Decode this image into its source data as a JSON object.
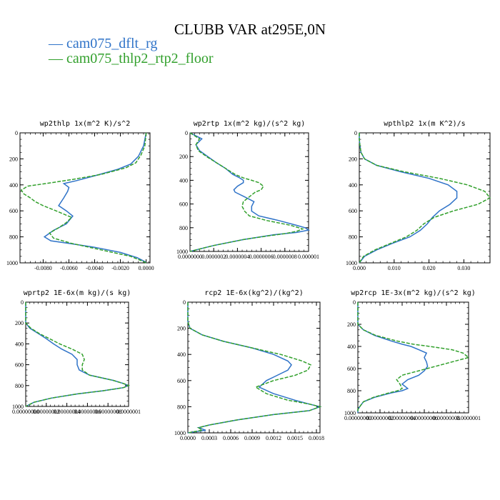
{
  "title": "CLUBB VAR at295E,0N",
  "colors": {
    "series1": "#2f73c8",
    "series2": "#32a02c",
    "axis": "#000000"
  },
  "legend": [
    {
      "label": "cam075_dflt_rg",
      "color": "#2f73c8"
    },
    {
      "label": "cam075_thlp2_rtp2_floor",
      "color": "#32a02c"
    }
  ],
  "chart_data": [
    {
      "type": "line",
      "title": "wp2thlp  1x(m^2 K)/s^2",
      "xlim": [
        -0.0098,
        0.0003
      ],
      "ylim": [
        1000,
        0
      ],
      "y_ticks": [
        0,
        200,
        400,
        600,
        800,
        1000
      ],
      "x_ticks": [
        {
          "v": -0.008,
          "label": "-0.0080"
        },
        {
          "v": -0.006,
          "label": "-0.0060"
        },
        {
          "v": -0.004,
          "label": "-0.0040"
        },
        {
          "v": -0.002,
          "label": "-0.0020"
        },
        {
          "v": 0.0,
          "label": "0.0000"
        }
      ],
      "series": [
        {
          "name": "cam075_dflt_rg",
          "y": [
            0,
            100,
            180,
            240,
            280,
            330,
            370,
            390,
            420,
            450,
            500,
            560,
            600,
            640,
            700,
            750,
            800,
            830,
            850,
            880,
            920,
            960,
            990,
            1000
          ],
          "values": [
            0.0,
            -0.0002,
            -0.0006,
            -0.0012,
            -0.0022,
            -0.004,
            -0.0055,
            -0.0064,
            -0.006,
            -0.0061,
            -0.0064,
            -0.0068,
            -0.0062,
            -0.0057,
            -0.0062,
            -0.0072,
            -0.0079,
            -0.0074,
            -0.006,
            -0.004,
            -0.002,
            -0.0007,
            -0.0001,
            0.0
          ]
        },
        {
          "name": "cam075_thlp2_rtp2_floor",
          "y": [
            0,
            100,
            170,
            230,
            270,
            320,
            360,
            390,
            410,
            440,
            470,
            500,
            530,
            560,
            600,
            650,
            690,
            730,
            770,
            810,
            850,
            900,
            950,
            990,
            1000
          ],
          "values": [
            0.0,
            -0.0001,
            -0.0004,
            -0.0008,
            -0.0016,
            -0.0035,
            -0.0058,
            -0.0078,
            -0.0092,
            -0.0097,
            -0.0095,
            -0.009,
            -0.0086,
            -0.008,
            -0.007,
            -0.0058,
            -0.0062,
            -0.0068,
            -0.0075,
            -0.0072,
            -0.0058,
            -0.0035,
            -0.0012,
            -0.0002,
            0.0
          ]
        }
      ]
    },
    {
      "type": "line",
      "title": "wp2rtp  1x(m^2 kg)/(s^2 kg)",
      "xlim": [
        0.0,
        1e-06
      ],
      "ylim": [
        1000,
        0
      ],
      "y_ticks": [
        0,
        200,
        400,
        600,
        800,
        1000
      ],
      "x_ticks": [
        {
          "v": 0.0,
          "label": "0.0000000"
        },
        {
          "v": 2e-07,
          "label": "0.0000002"
        },
        {
          "v": 4e-07,
          "label": "0.0000004"
        },
        {
          "v": 6e-07,
          "label": "0.0000006"
        },
        {
          "v": 8e-07,
          "label": "0.0000008"
        },
        {
          "v": 1e-06,
          "label": "0.000001"
        }
      ],
      "series": [
        {
          "name": "cam075_dflt_rg",
          "y": [
            0,
            50,
            100,
            150,
            200,
            250,
            300,
            350,
            380,
            400,
            420,
            450,
            480,
            500,
            540,
            580,
            620,
            660,
            700,
            740,
            780,
            800,
            820,
            840,
            860,
            900,
            950,
            990,
            1000
          ],
          "values": [
            0.0,
            1e-07,
            5e-08,
            8e-08,
            1.5e-07,
            2.2e-07,
            3e-07,
            3.6e-07,
            4.2e-07,
            4.5e-07,
            4.5e-07,
            4e-07,
            3.7e-07,
            3.8e-07,
            4.6e-07,
            5.4e-07,
            5.2e-07,
            5.2e-07,
            5.8e-07,
            7.5e-07,
            9e-07,
            9.7e-07,
            1e-06,
            9e-07,
            7e-07,
            4.5e-07,
            2e-07,
            4e-08,
            0.0
          ]
        },
        {
          "name": "cam075_thlp2_rtp2_floor",
          "y": [
            0,
            50,
            100,
            150,
            200,
            250,
            300,
            350,
            380,
            400,
            420,
            450,
            480,
            500,
            540,
            580,
            620,
            660,
            700,
            740,
            780,
            810,
            830,
            850,
            870,
            900,
            950,
            990,
            1000
          ],
          "values": [
            0.0,
            8e-08,
            5e-08,
            7e-08,
            1.4e-07,
            2.2e-07,
            3e-07,
            3.8e-07,
            4.5e-07,
            5.2e-07,
            5.8e-07,
            6.2e-07,
            6e-07,
            5.5e-07,
            5e-07,
            4.5e-07,
            4.4e-07,
            4.6e-07,
            5e-07,
            6.5e-07,
            8.5e-07,
            9.5e-07,
            9e-07,
            8e-07,
            6.5e-07,
            4.5e-07,
            2e-07,
            4e-08,
            0.0
          ]
        }
      ]
    },
    {
      "type": "line",
      "title": "wpthlp2  1x(m K^2)/s",
      "xlim": [
        0.0,
        0.0375
      ],
      "ylim": [
        1000,
        0
      ],
      "y_ticks": [
        0,
        200,
        400,
        600,
        800,
        1000
      ],
      "x_ticks": [
        {
          "v": 0.0,
          "label": "0.000"
        },
        {
          "v": 0.01,
          "label": "0.010"
        },
        {
          "v": 0.02,
          "label": "0.020"
        },
        {
          "v": 0.03,
          "label": "0.030"
        }
      ],
      "series": [
        {
          "name": "cam075_dflt_rg",
          "y": [
            0,
            50,
            100,
            150,
            200,
            250,
            300,
            350,
            400,
            450,
            500,
            550,
            600,
            650,
            700,
            750,
            800,
            850,
            900,
            950,
            1000
          ],
          "values": [
            0.0,
            0.0,
            0.0002,
            0.0005,
            0.0015,
            0.005,
            0.012,
            0.02,
            0.0255,
            0.028,
            0.028,
            0.026,
            0.023,
            0.021,
            0.0195,
            0.0175,
            0.0145,
            0.0095,
            0.005,
            0.0015,
            0.0
          ]
        },
        {
          "name": "cam075_thlp2_rtp2_floor",
          "y": [
            0,
            50,
            100,
            150,
            200,
            250,
            300,
            350,
            400,
            450,
            500,
            550,
            600,
            650,
            700,
            750,
            800,
            850,
            900,
            950,
            1000
          ],
          "values": [
            0.0,
            0.0,
            0.0002,
            0.0005,
            0.0015,
            0.005,
            0.013,
            0.023,
            0.031,
            0.036,
            0.0375,
            0.034,
            0.027,
            0.0215,
            0.0185,
            0.0165,
            0.0135,
            0.009,
            0.0045,
            0.0012,
            0.0
          ]
        }
      ]
    },
    {
      "type": "line",
      "title": "wprtp2  1E-6x(m kg)/(s kg)",
      "xlim": [
        0.0,
        1e-06
      ],
      "ylim": [
        1000,
        0
      ],
      "y_ticks": [
        0,
        200,
        400,
        600,
        800,
        1000
      ],
      "x_ticks": [
        {
          "v": 0.0,
          "label": "0.00000000"
        },
        {
          "v": 2e-07,
          "label": "0.00000002"
        },
        {
          "v": 4e-07,
          "label": "0.00000004"
        },
        {
          "v": 6e-07,
          "label": "0.00000006"
        },
        {
          "v": 8e-07,
          "label": "0.00000008"
        },
        {
          "v": 1e-06,
          "label": "0.0000001"
        }
      ],
      "series": [
        {
          "name": "cam075_dflt_rg",
          "y": [
            0,
            100,
            200,
            250,
            300,
            350,
            400,
            450,
            500,
            550,
            600,
            650,
            700,
            750,
            780,
            800,
            820,
            850,
            880,
            920,
            960,
            1000
          ],
          "values": [
            0.0,
            0.0,
            0.0,
            4e-08,
            1.2e-07,
            2e-07,
            2.7e-07,
            3.5e-07,
            4.5e-07,
            5e-07,
            5e-07,
            5.2e-07,
            6.2e-07,
            8.5e-07,
            9.5e-07,
            1e-06,
            9.5e-07,
            7.5e-07,
            5e-07,
            2.5e-07,
            8e-08,
            0.0
          ]
        },
        {
          "name": "cam075_thlp2_rtp2_floor",
          "y": [
            0,
            100,
            200,
            250,
            300,
            350,
            400,
            450,
            500,
            550,
            600,
            650,
            700,
            750,
            780,
            800,
            820,
            850,
            880,
            920,
            960,
            1000
          ],
          "values": [
            0.0,
            0.0,
            0.0,
            5e-08,
            1.3e-07,
            2.3e-07,
            3.3e-07,
            4.5e-07,
            5.5e-07,
            5.7e-07,
            5.5e-07,
            5.5e-07,
            6.2e-07,
            8.5e-07,
            9.5e-07,
            1e-06,
            9.5e-07,
            7.5e-07,
            5e-07,
            2.5e-07,
            8e-08,
            0.0
          ]
        }
      ]
    },
    {
      "type": "line",
      "title": "rcp2  1E-6x(kg^2)/(kg^2)",
      "xlim": [
        0.0,
        0.00185
      ],
      "ylim": [
        1000,
        0
      ],
      "y_ticks": [
        0,
        200,
        400,
        600,
        800,
        1000
      ],
      "x_ticks": [
        {
          "v": 0.0,
          "label": "0.0000"
        },
        {
          "v": 0.0003,
          "label": "0.0003"
        },
        {
          "v": 0.0006,
          "label": "0.0006"
        },
        {
          "v": 0.0009,
          "label": "0.0009"
        },
        {
          "v": 0.0012,
          "label": "0.0012"
        },
        {
          "v": 0.0015,
          "label": "0.0015"
        },
        {
          "v": 0.0018,
          "label": "0.0018"
        }
      ],
      "series": [
        {
          "name": "cam075_dflt_rg",
          "y": [
            0,
            150,
            200,
            250,
            300,
            350,
            400,
            450,
            480,
            520,
            560,
            600,
            650,
            700,
            750,
            780,
            800,
            830,
            860,
            900,
            940,
            960,
            980,
            1000
          ],
          "values": [
            0.0,
            0.0,
            3e-05,
            0.0002,
            0.0005,
            0.0009,
            0.0012,
            0.0014,
            0.00145,
            0.0014,
            0.00125,
            0.0011,
            0.001,
            0.0012,
            0.0015,
            0.0017,
            0.00185,
            0.0017,
            0.0012,
            0.0007,
            0.0003,
            0.00015,
            0.00025,
            0.0
          ]
        },
        {
          "name": "cam075_thlp2_rtp2_floor",
          "y": [
            0,
            150,
            200,
            250,
            300,
            350,
            400,
            450,
            480,
            520,
            560,
            600,
            650,
            700,
            750,
            780,
            800,
            830,
            860,
            900,
            940,
            960,
            980,
            1000
          ],
          "values": [
            0.0,
            0.0,
            3e-05,
            0.0002,
            0.0005,
            0.0009,
            0.0013,
            0.0016,
            0.00172,
            0.00168,
            0.0015,
            0.0012,
            0.00095,
            0.0011,
            0.0014,
            0.0017,
            0.00185,
            0.0017,
            0.0012,
            0.0007,
            0.0003,
            0.00015,
            0.0002,
            0.0
          ]
        }
      ]
    },
    {
      "type": "line",
      "title": "wp2rcp  1E-3x(m^2 kg)/(s^2 kg)",
      "xlim": [
        0.0,
        1e-06
      ],
      "ylim": [
        1000,
        0
      ],
      "y_ticks": [
        0,
        200,
        400,
        600,
        800,
        1000
      ],
      "x_ticks": [
        {
          "v": 0.0,
          "label": "0.00000000"
        },
        {
          "v": 2e-07,
          "label": "0.00000002"
        },
        {
          "v": 4e-07,
          "label": "0.00000004"
        },
        {
          "v": 6e-07,
          "label": "0.00000006"
        },
        {
          "v": 8e-07,
          "label": "0.00000008"
        },
        {
          "v": 1e-06,
          "label": "0.0000001"
        }
      ],
      "series": [
        {
          "name": "cam075_dflt_rg",
          "y": [
            0,
            100,
            200,
            250,
            300,
            350,
            380,
            400,
            430,
            460,
            500,
            540,
            580,
            620,
            660,
            700,
            740,
            780,
            800,
            820,
            860,
            900,
            940,
            970,
            1000
          ],
          "values": [
            0.0,
            0.0,
            0.0,
            5e-08,
            1.5e-07,
            3e-07,
            4e-07,
            4.8e-07,
            5.5e-07,
            6.2e-07,
            6e-07,
            6.2e-07,
            6.3e-07,
            6e-07,
            5.5e-07,
            4.5e-07,
            4e-07,
            4.5e-07,
            4e-07,
            3e-07,
            1.5e-07,
            5e-08,
            2e-08,
            0.0,
            0.0
          ]
        },
        {
          "name": "cam075_thlp2_rtp2_floor",
          "y": [
            0,
            100,
            200,
            250,
            300,
            350,
            380,
            400,
            430,
            460,
            500,
            540,
            580,
            620,
            660,
            700,
            740,
            780,
            800,
            820,
            860,
            900,
            940,
            970,
            1000
          ],
          "values": [
            0.0,
            0.0,
            0.0,
            5e-08,
            1.6e-07,
            3.5e-07,
            5e-07,
            6.5e-07,
            8.5e-07,
            9.5e-07,
            1e-06,
            8.5e-07,
            7e-07,
            5.5e-07,
            4e-07,
            3.5e-07,
            3.8e-07,
            4e-07,
            3.6e-07,
            2.8e-07,
            1.4e-07,
            5e-08,
            2e-08,
            0.0,
            0.0
          ]
        }
      ]
    }
  ]
}
